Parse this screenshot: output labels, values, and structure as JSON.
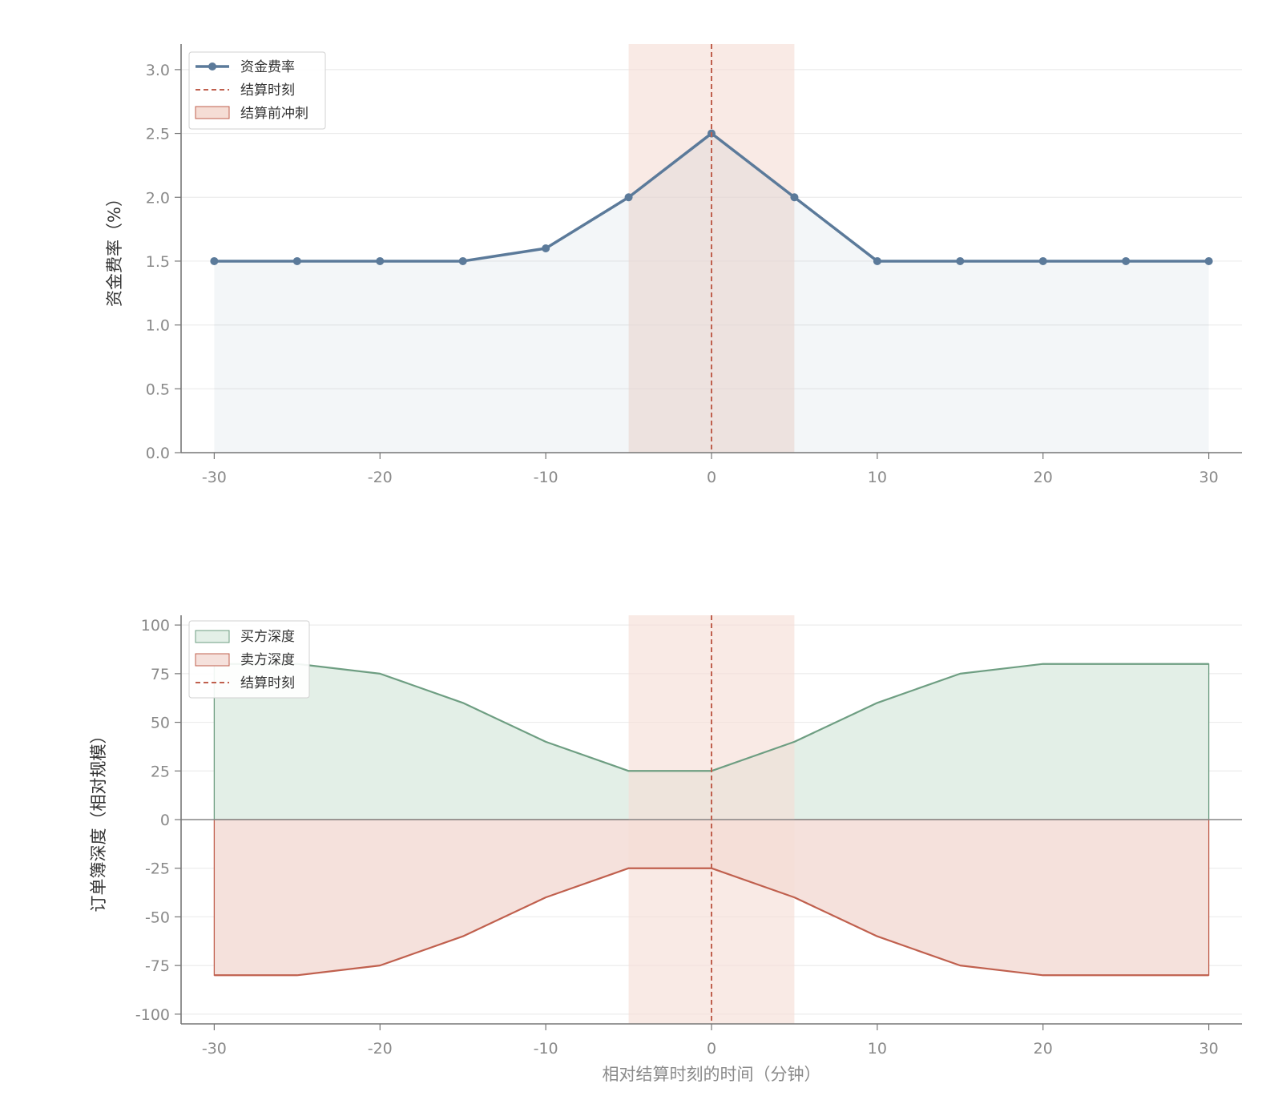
{
  "chart_data": [
    {
      "type": "line",
      "x": [
        -30,
        -25,
        -20,
        -15,
        -10,
        -5,
        0,
        5,
        10,
        15,
        20,
        25,
        30
      ],
      "series": [
        {
          "name": "资金费率",
          "values": [
            1.5,
            1.5,
            1.5,
            1.5,
            1.6,
            2.0,
            2.5,
            2.0,
            1.5,
            1.5,
            1.5,
            1.5,
            1.5
          ],
          "color": "#5b7a9a"
        }
      ],
      "vline": {
        "name": "结算时刻",
        "x": 0,
        "color": "#c0604e"
      },
      "span": {
        "name": "结算前冲刺",
        "x0": -5,
        "x1": 5,
        "color": "#f5ddd5"
      },
      "ylabel": "资金费率（%）",
      "xlabel": "",
      "xticks": [
        "-30",
        "-20",
        "-10",
        "0",
        "10",
        "20",
        "30"
      ],
      "yticks": [
        "0.0",
        "0.5",
        "1.0",
        "1.5",
        "2.0",
        "2.5",
        "3.0"
      ],
      "xlim": [
        -32,
        32
      ],
      "ylim": [
        0,
        3.2
      ],
      "grid": true,
      "legend": "top-left"
    },
    {
      "type": "area",
      "x": [
        -30,
        -25,
        -20,
        -15,
        -10,
        -5,
        0,
        5,
        10,
        15,
        20,
        25,
        30
      ],
      "series": [
        {
          "name": "买方深度",
          "values": [
            80,
            80,
            75,
            60,
            40,
            25,
            25,
            40,
            60,
            75,
            80,
            80,
            80
          ],
          "color": "#6e9e82",
          "fill": "#e3efe7"
        },
        {
          "name": "卖方深度",
          "values": [
            -80,
            -80,
            -75,
            -60,
            -40,
            -25,
            -25,
            -40,
            -60,
            -75,
            -80,
            -80,
            -80
          ],
          "color": "#c0604e",
          "fill": "#f5e1dc"
        }
      ],
      "vline": {
        "name": "结算时刻",
        "x": 0,
        "color": "#c0604e"
      },
      "span": {
        "x0": -5,
        "x1": 5,
        "color": "#f5ddd5"
      },
      "ylabel": "订单簿深度（相对规模）",
      "xlabel": "相对结算时刻的时间（分钟）",
      "xticks": [
        "-30",
        "-20",
        "-10",
        "0",
        "10",
        "20",
        "30"
      ],
      "yticks": [
        "-100",
        "-75",
        "-50",
        "-25",
        "0",
        "25",
        "50",
        "75",
        "100"
      ],
      "xlim": [
        -32,
        32
      ],
      "ylim": [
        -105,
        105
      ],
      "grid": true,
      "legend": "top-left"
    }
  ]
}
